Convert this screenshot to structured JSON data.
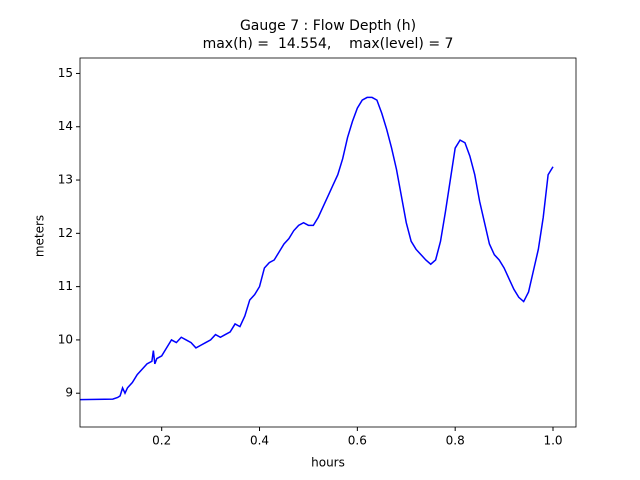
{
  "chart_data": {
    "type": "line",
    "title": "Gauge 7 : Flow Depth (h)",
    "subtitle": "max(h) =  14.554,    max(level) = 7",
    "xlabel": "hours",
    "ylabel": "meters",
    "xlim": [
      0.033,
      1.047
    ],
    "ylim": [
      8.366,
      15.29
    ],
    "xticks": [
      0.2,
      0.4,
      0.6,
      0.8,
      {
        "value": 1,
        "label": "1.0"
      }
    ],
    "yticks": [
      9,
      10,
      11,
      12,
      13,
      14,
      15
    ],
    "grid": false,
    "x": [
      0.033,
      0.1,
      0.11,
      0.115,
      0.12,
      0.125,
      0.13,
      0.14,
      0.15,
      0.16,
      0.17,
      0.18,
      0.183,
      0.186,
      0.19,
      0.2,
      0.21,
      0.22,
      0.23,
      0.24,
      0.25,
      0.26,
      0.27,
      0.28,
      0.29,
      0.3,
      0.31,
      0.32,
      0.33,
      0.34,
      0.35,
      0.36,
      0.37,
      0.38,
      0.39,
      0.4,
      0.41,
      0.42,
      0.43,
      0.44,
      0.45,
      0.46,
      0.47,
      0.48,
      0.49,
      0.5,
      0.51,
      0.52,
      0.53,
      0.54,
      0.55,
      0.56,
      0.57,
      0.58,
      0.59,
      0.6,
      0.61,
      0.62,
      0.63,
      0.64,
      0.65,
      0.66,
      0.67,
      0.68,
      0.69,
      0.7,
      0.71,
      0.72,
      0.73,
      0.74,
      0.75,
      0.76,
      0.77,
      0.78,
      0.79,
      0.8,
      0.81,
      0.82,
      0.83,
      0.84,
      0.85,
      0.86,
      0.87,
      0.88,
      0.89,
      0.9,
      0.91,
      0.92,
      0.93,
      0.94,
      0.95,
      0.96,
      0.97,
      0.98,
      0.99,
      1.0
    ],
    "series": [
      {
        "name": "h",
        "color": "#0000ff",
        "values": [
          8.88,
          8.89,
          8.92,
          8.95,
          9.1,
          9.0,
          9.1,
          9.2,
          9.35,
          9.45,
          9.55,
          9.6,
          9.8,
          9.55,
          9.65,
          9.7,
          9.85,
          10.0,
          9.95,
          10.05,
          10.0,
          9.95,
          9.85,
          9.9,
          9.95,
          10.0,
          10.1,
          10.05,
          10.1,
          10.15,
          10.3,
          10.25,
          10.45,
          10.75,
          10.85,
          11.0,
          11.35,
          11.45,
          11.5,
          11.65,
          11.8,
          11.9,
          12.05,
          12.15,
          12.2,
          12.15,
          12.15,
          12.3,
          12.5,
          12.7,
          12.9,
          13.1,
          13.4,
          13.8,
          14.1,
          14.35,
          14.5,
          14.55,
          14.55,
          14.5,
          14.25,
          13.95,
          13.6,
          13.2,
          12.7,
          12.2,
          11.85,
          11.7,
          11.6,
          11.5,
          11.42,
          11.5,
          11.85,
          12.4,
          13.0,
          13.6,
          13.75,
          13.7,
          13.45,
          13.1,
          12.6,
          12.2,
          11.8,
          11.6,
          11.5,
          11.35,
          11.15,
          10.95,
          10.8,
          10.72,
          10.9,
          11.3,
          11.7,
          12.3,
          13.1,
          13.25
        ]
      }
    ]
  }
}
